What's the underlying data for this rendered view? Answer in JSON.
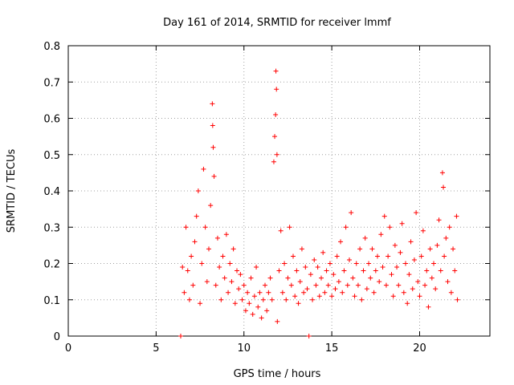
{
  "chart_data": {
    "type": "scatter",
    "title": "Day 161 of 2014, SRMTID for receiver lmmf",
    "xlabel": "GPS time / hours",
    "ylabel": "SRMTID / TECUs",
    "xlim": [
      0,
      24
    ],
    "ylim": [
      0,
      0.8
    ],
    "xticks": [
      0,
      5,
      10,
      15,
      20
    ],
    "xtick_labels": [
      "0",
      "5",
      "10",
      "15",
      "20"
    ],
    "yticks": [
      0,
      0.1,
      0.2,
      0.3,
      0.4,
      0.5,
      0.6,
      0.7,
      0.8
    ],
    "ytick_labels": [
      "0",
      "0.1",
      "0.2",
      "0.3",
      "0.4",
      "0.5",
      "0.6",
      "0.7",
      "0.8"
    ],
    "grid": true,
    "marker": "+",
    "color": "#ff0000",
    "series": [
      {
        "name": "SRMTID",
        "points": [
          [
            6.4,
            0.0
          ],
          [
            6.5,
            0.19
          ],
          [
            6.6,
            0.12
          ],
          [
            6.7,
            0.3
          ],
          [
            6.8,
            0.18
          ],
          [
            6.9,
            0.1
          ],
          [
            7.0,
            0.22
          ],
          [
            7.1,
            0.14
          ],
          [
            7.2,
            0.26
          ],
          [
            7.3,
            0.33
          ],
          [
            7.4,
            0.4
          ],
          [
            7.5,
            0.09
          ],
          [
            7.6,
            0.2
          ],
          [
            7.7,
            0.46
          ],
          [
            7.8,
            0.3
          ],
          [
            7.9,
            0.15
          ],
          [
            8.0,
            0.24
          ],
          [
            8.1,
            0.36
          ],
          [
            8.2,
            0.64
          ],
          [
            8.22,
            0.58
          ],
          [
            8.25,
            0.52
          ],
          [
            8.3,
            0.44
          ],
          [
            8.4,
            0.14
          ],
          [
            8.5,
            0.27
          ],
          [
            8.6,
            0.19
          ],
          [
            8.7,
            0.1
          ],
          [
            8.8,
            0.22
          ],
          [
            8.9,
            0.16
          ],
          [
            9.0,
            0.28
          ],
          [
            9.1,
            0.12
          ],
          [
            9.2,
            0.2
          ],
          [
            9.3,
            0.15
          ],
          [
            9.4,
            0.24
          ],
          [
            9.5,
            0.09
          ],
          [
            9.6,
            0.18
          ],
          [
            9.7,
            0.13
          ],
          [
            9.8,
            0.17
          ],
          [
            9.9,
            0.1
          ],
          [
            10.0,
            0.14
          ],
          [
            10.1,
            0.07
          ],
          [
            10.2,
            0.12
          ],
          [
            10.3,
            0.09
          ],
          [
            10.4,
            0.16
          ],
          [
            10.5,
            0.06
          ],
          [
            10.6,
            0.11
          ],
          [
            10.7,
            0.19
          ],
          [
            10.8,
            0.08
          ],
          [
            10.9,
            0.12
          ],
          [
            11.0,
            0.05
          ],
          [
            11.1,
            0.1
          ],
          [
            11.2,
            0.14
          ],
          [
            11.3,
            0.07
          ],
          [
            11.4,
            0.12
          ],
          [
            11.5,
            0.16
          ],
          [
            11.6,
            0.1
          ],
          [
            11.7,
            0.48
          ],
          [
            11.75,
            0.55
          ],
          [
            11.8,
            0.61
          ],
          [
            11.82,
            0.73
          ],
          [
            11.85,
            0.68
          ],
          [
            11.88,
            0.5
          ],
          [
            11.9,
            0.04
          ],
          [
            12.0,
            0.18
          ],
          [
            12.1,
            0.29
          ],
          [
            12.2,
            0.12
          ],
          [
            12.3,
            0.2
          ],
          [
            12.4,
            0.1
          ],
          [
            12.5,
            0.16
          ],
          [
            12.6,
            0.3
          ],
          [
            12.7,
            0.14
          ],
          [
            12.8,
            0.22
          ],
          [
            12.9,
            0.11
          ],
          [
            13.0,
            0.18
          ],
          [
            13.1,
            0.09
          ],
          [
            13.2,
            0.15
          ],
          [
            13.3,
            0.24
          ],
          [
            13.4,
            0.12
          ],
          [
            13.5,
            0.19
          ],
          [
            13.6,
            0.13
          ],
          [
            13.7,
            0.0
          ],
          [
            13.8,
            0.17
          ],
          [
            13.9,
            0.1
          ],
          [
            14.0,
            0.21
          ],
          [
            14.1,
            0.14
          ],
          [
            14.2,
            0.19
          ],
          [
            14.3,
            0.11
          ],
          [
            14.4,
            0.16
          ],
          [
            14.5,
            0.23
          ],
          [
            14.6,
            0.12
          ],
          [
            14.7,
            0.18
          ],
          [
            14.8,
            0.14
          ],
          [
            14.9,
            0.2
          ],
          [
            15.0,
            0.11
          ],
          [
            15.1,
            0.17
          ],
          [
            15.2,
            0.13
          ],
          [
            15.3,
            0.22
          ],
          [
            15.4,
            0.15
          ],
          [
            15.5,
            0.26
          ],
          [
            15.6,
            0.12
          ],
          [
            15.7,
            0.18
          ],
          [
            15.8,
            0.3
          ],
          [
            15.9,
            0.14
          ],
          [
            16.0,
            0.21
          ],
          [
            16.1,
            0.34
          ],
          [
            16.2,
            0.16
          ],
          [
            16.3,
            0.11
          ],
          [
            16.4,
            0.2
          ],
          [
            16.5,
            0.14
          ],
          [
            16.6,
            0.24
          ],
          [
            16.7,
            0.1
          ],
          [
            16.8,
            0.18
          ],
          [
            16.9,
            0.27
          ],
          [
            17.0,
            0.13
          ],
          [
            17.1,
            0.2
          ],
          [
            17.2,
            0.16
          ],
          [
            17.3,
            0.24
          ],
          [
            17.4,
            0.12
          ],
          [
            17.5,
            0.18
          ],
          [
            17.6,
            0.22
          ],
          [
            17.7,
            0.15
          ],
          [
            17.8,
            0.28
          ],
          [
            17.9,
            0.19
          ],
          [
            18.0,
            0.33
          ],
          [
            18.1,
            0.14
          ],
          [
            18.2,
            0.22
          ],
          [
            18.3,
            0.3
          ],
          [
            18.4,
            0.17
          ],
          [
            18.5,
            0.11
          ],
          [
            18.6,
            0.25
          ],
          [
            18.7,
            0.19
          ],
          [
            18.8,
            0.14
          ],
          [
            18.9,
            0.23
          ],
          [
            19.0,
            0.31
          ],
          [
            19.1,
            0.12
          ],
          [
            19.2,
            0.2
          ],
          [
            19.3,
            0.09
          ],
          [
            19.4,
            0.17
          ],
          [
            19.5,
            0.26
          ],
          [
            19.6,
            0.13
          ],
          [
            19.7,
            0.21
          ],
          [
            19.8,
            0.34
          ],
          [
            19.9,
            0.15
          ],
          [
            20.0,
            0.11
          ],
          [
            20.1,
            0.22
          ],
          [
            20.2,
            0.29
          ],
          [
            20.3,
            0.14
          ],
          [
            20.4,
            0.18
          ],
          [
            20.5,
            0.08
          ],
          [
            20.6,
            0.24
          ],
          [
            20.7,
            0.16
          ],
          [
            20.8,
            0.2
          ],
          [
            20.9,
            0.13
          ],
          [
            21.0,
            0.25
          ],
          [
            21.1,
            0.32
          ],
          [
            21.2,
            0.18
          ],
          [
            21.3,
            0.45
          ],
          [
            21.35,
            0.41
          ],
          [
            21.4,
            0.22
          ],
          [
            21.5,
            0.27
          ],
          [
            21.6,
            0.15
          ],
          [
            21.7,
            0.3
          ],
          [
            21.8,
            0.12
          ],
          [
            21.9,
            0.24
          ],
          [
            22.0,
            0.18
          ],
          [
            22.1,
            0.33
          ],
          [
            22.15,
            0.1
          ]
        ]
      }
    ]
  }
}
